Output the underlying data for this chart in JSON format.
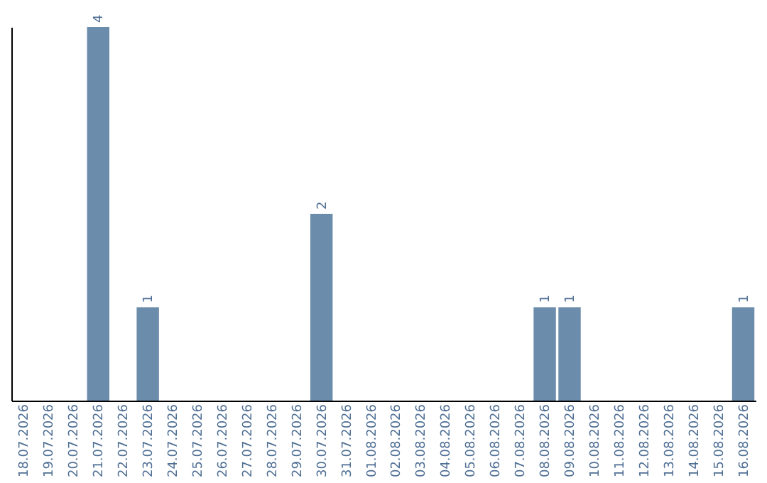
{
  "chart_data": {
    "type": "bar",
    "categories": [
      "18.07.2026",
      "19.07.2026",
      "20.07.2026",
      "21.07.2026",
      "22.07.2026",
      "23.07.2026",
      "24.07.2026",
      "25.07.2026",
      "26.07.2026",
      "27.07.2026",
      "28.07.2026",
      "29.07.2026",
      "30.07.2026",
      "31.07.2026",
      "01.08.2026",
      "02.08.2026",
      "03.08.2026",
      "04.08.2026",
      "05.08.2026",
      "06.08.2026",
      "07.08.2026",
      "08.08.2026",
      "09.08.2026",
      "10.08.2026",
      "11.08.2026",
      "12.08.2026",
      "13.08.2026",
      "14.08.2026",
      "15.08.2026",
      "16.08.2026"
    ],
    "values": [
      0,
      0,
      0,
      4,
      0,
      1,
      0,
      0,
      0,
      0,
      0,
      0,
      2,
      0,
      0,
      0,
      0,
      0,
      0,
      0,
      0,
      1,
      1,
      0,
      0,
      0,
      0,
      0,
      0,
      1
    ],
    "value_labels": [
      null,
      null,
      null,
      "4",
      null,
      "1",
      null,
      null,
      null,
      null,
      null,
      null,
      "2",
      null,
      null,
      null,
      null,
      null,
      null,
      null,
      null,
      "1",
      "1",
      null,
      null,
      null,
      null,
      null,
      null,
      "1"
    ],
    "color": "#6b8cab",
    "tick_labels": "x",
    "grid": false
  }
}
